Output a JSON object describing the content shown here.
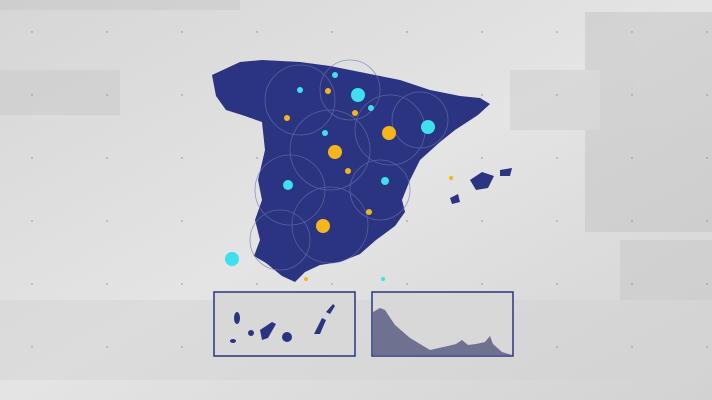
{
  "colors": {
    "land": "#2a3480",
    "background": "#dcdcdc",
    "marker_cyan": "#3ee0ee",
    "marker_yellow": "#f7b51c",
    "inset_border": "#2a3480",
    "coast_fill": "#6e7290"
  },
  "markers": {
    "cyan": [
      [
        358,
        95,
        7
      ],
      [
        428,
        127,
        7
      ],
      [
        288,
        185,
        5
      ],
      [
        385,
        181,
        4
      ],
      [
        232,
        259,
        7
      ],
      [
        300,
        90,
        3
      ],
      [
        325,
        133,
        3
      ],
      [
        371,
        108,
        3
      ],
      [
        383,
        279,
        2
      ],
      [
        335,
        75,
        3
      ]
    ],
    "yellow": [
      [
        335,
        152,
        7
      ],
      [
        389,
        133,
        7
      ],
      [
        323,
        226,
        7
      ],
      [
        355,
        113,
        3
      ],
      [
        287,
        118,
        3
      ],
      [
        328,
        91,
        3
      ],
      [
        348,
        171,
        3
      ],
      [
        369,
        212,
        3
      ],
      [
        451,
        178,
        2
      ],
      [
        306,
        279,
        2
      ]
    ]
  },
  "insets": [
    "canary-islands",
    "coastal-profile"
  ]
}
